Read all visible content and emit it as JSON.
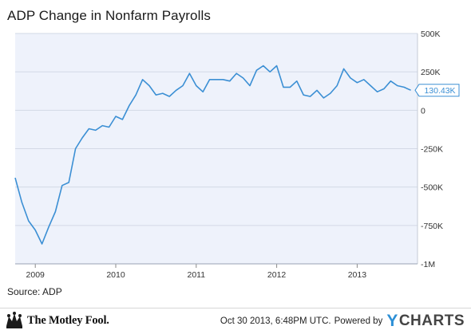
{
  "title": "ADP Change in Nonfarm Payrolls",
  "source": "Source: ADP",
  "footer": {
    "logo_text": "The Motley Fool.",
    "timestamp": "Oct 30 2013, 6:48PM UTC.",
    "powered_by": "Powered by",
    "brand_y": "Y",
    "brand_rest": "CHARTS"
  },
  "colors": {
    "line": "#3b8fd4",
    "plot_bg": "#eef2fb",
    "callout_border": "#3b8fd4",
    "brand": "#2c8fd6"
  },
  "chart_data": {
    "type": "line",
    "title": "ADP Change in Nonfarm Payrolls",
    "ylim": [
      -1000000,
      500000
    ],
    "yticks": [
      500000,
      250000,
      0,
      -250000,
      -500000,
      -750000,
      -1000000
    ],
    "ytick_labels": [
      "500K",
      "250K",
      "0",
      "-250K",
      "-500K",
      "-750K",
      "-1M"
    ],
    "xticks": [
      "2009-01",
      "2010-01",
      "2011-01",
      "2012-01",
      "2013-01"
    ],
    "xtick_labels": [
      "2009",
      "2010",
      "2011",
      "2012",
      "2013"
    ],
    "xlim": [
      "2008-10",
      "2013-10"
    ],
    "grid": "horizontal",
    "last_value_label": "130.43K",
    "series": [
      {
        "x": [
          "2008-10",
          "2008-11",
          "2008-12",
          "2009-01",
          "2009-02",
          "2009-03",
          "2009-04",
          "2009-05",
          "2009-06",
          "2009-07",
          "2009-08",
          "2009-09",
          "2009-10",
          "2009-11",
          "2009-12",
          "2010-01",
          "2010-02",
          "2010-03",
          "2010-04",
          "2010-05",
          "2010-06",
          "2010-07",
          "2010-08",
          "2010-09",
          "2010-10",
          "2010-11",
          "2010-12",
          "2011-01",
          "2011-02",
          "2011-03",
          "2011-04",
          "2011-05",
          "2011-06",
          "2011-07",
          "2011-08",
          "2011-09",
          "2011-10",
          "2011-11",
          "2011-12",
          "2012-01",
          "2012-02",
          "2012-03",
          "2012-04",
          "2012-05",
          "2012-06",
          "2012-07",
          "2012-08",
          "2012-09",
          "2012-10",
          "2012-11",
          "2012-12",
          "2013-01",
          "2013-02",
          "2013-03",
          "2013-04",
          "2013-05",
          "2013-06",
          "2013-07",
          "2013-08",
          "2013-09"
        ],
        "values": [
          -440000,
          -600000,
          -720000,
          -780000,
          -870000,
          -760000,
          -660000,
          -490000,
          -470000,
          -250000,
          -180000,
          -120000,
          -130000,
          -100000,
          -110000,
          -40000,
          -60000,
          30000,
          100000,
          200000,
          160000,
          100000,
          110000,
          90000,
          130000,
          160000,
          240000,
          160000,
          120000,
          200000,
          200000,
          200000,
          190000,
          240000,
          210000,
          160000,
          260000,
          290000,
          250000,
          290000,
          150000,
          150000,
          190000,
          100000,
          90000,
          130000,
          80000,
          110000,
          160000,
          270000,
          210000,
          180000,
          200000,
          160000,
          120000,
          140000,
          190000,
          160000,
          150000,
          130430
        ]
      }
    ]
  }
}
